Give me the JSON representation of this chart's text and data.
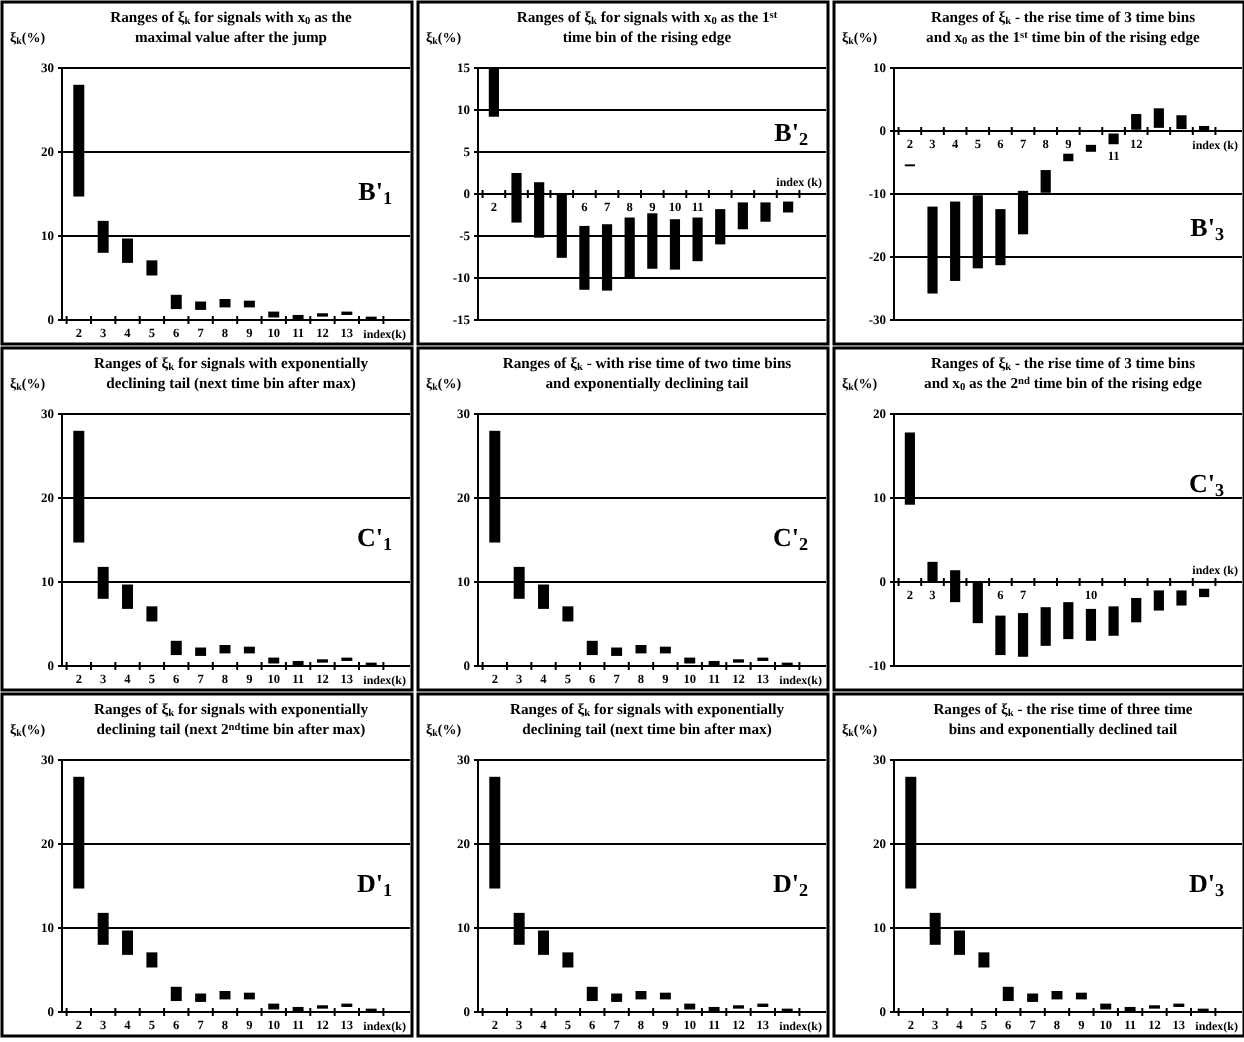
{
  "chart_data": [
    {
      "type": "bar",
      "title": "Ranges of ξ$_{k}$ for signals with x$_{0}$ as the maximal value after the jump",
      "ylabel": "ξ$_{k}$(%)",
      "xlabel": "index(k)",
      "categories": [
        "2",
        "3",
        "4",
        "5",
        "6",
        "7",
        "8",
        "9",
        "10",
        "11",
        "12",
        "13",
        null
      ],
      "base": [
        14.7,
        8,
        6.8,
        5.3,
        1.3,
        1.2,
        1.5,
        1.5,
        0.3,
        0.1,
        0.4,
        0.6,
        0.1
      ],
      "values": [
        13.3,
        3.8,
        2.9,
        1.8,
        1.7,
        1.0,
        1.0,
        0.8,
        0.7,
        0.5,
        0.4,
        0.4,
        0.3
      ],
      "color": "#000000",
      "ylim": [
        0,
        30
      ],
      "yticks": [
        0,
        10,
        20,
        30
      ],
      "grid": "y",
      "annotations": [
        "B'$_{1}$"
      ]
    },
    {
      "type": "bar",
      "title": "Ranges of ξ$_{k}$ for signals with x$_{0}$ as the 1$^{st}$ time bin of the rising edge",
      "ylabel": "ξ$_{k}$(%)",
      "xlabel": "index (k)",
      "categories": [
        "2",
        null,
        null,
        null,
        "6",
        "7",
        "8",
        "9",
        "10",
        "11",
        null,
        null,
        null,
        null
      ],
      "base": [
        9.2,
        -3.4,
        -5.2,
        -7.6,
        -11.4,
        -11.5,
        -10,
        -8.9,
        -9,
        -8,
        -6,
        -4.2,
        -3.3,
        -2.2
      ],
      "values": [
        5.8,
        5.9,
        6.6,
        7.6,
        7.6,
        7.9,
        7.2,
        6.6,
        6,
        5.2,
        4.2,
        3.2,
        2.3,
        1.3
      ],
      "color": "#000000",
      "ylim": [
        -15,
        15
      ],
      "yticks": [
        -15,
        -10,
        -5,
        0,
        5,
        10,
        15
      ],
      "grid": "y",
      "annotations": [
        "B'$_{2}$"
      ]
    },
    {
      "type": "bar",
      "title": "Ranges of ξ$_{k}$ - the rise time of 3 time bins and x$_{0}$ as the 1$^{st}$ time bin of the rising edge",
      "ylabel": "ξ$_{k}$(%)",
      "xlabel": "index (k)",
      "categories": [
        "2",
        "3",
        "4",
        "5",
        "6",
        "7",
        "8",
        "9",
        null,
        "11",
        "12",
        null,
        null,
        null
      ],
      "base": [
        -5.6,
        -25.8,
        -23.8,
        -21.8,
        -21.3,
        -16.4,
        -9.8,
        -4.8,
        -3.3,
        -2.1,
        0.2,
        0.5,
        0.3,
        0
      ],
      "values": [
        0.3,
        13.8,
        12.6,
        11.6,
        8.9,
        6.9,
        3.6,
        1.2,
        1.1,
        1.7,
        2.5,
        3.1,
        2.2,
        0.8
      ],
      "color": "#000000",
      "ylim": [
        -30,
        10
      ],
      "yticks": [
        -30,
        -20,
        -10,
        0,
        10
      ],
      "grid": "y",
      "annotations": [
        "B'$_{3}$"
      ]
    },
    {
      "type": "bar",
      "title": "Ranges of ξ$_{k}$ for signals with exponentially declining tail (next time bin after max)",
      "ylabel": "ξ$_{k}$(%)",
      "xlabel": "index(k)",
      "categories": [
        "2",
        "3",
        "4",
        "5",
        "6",
        "7",
        "8",
        "9",
        "10",
        "11",
        "12",
        "13",
        null
      ],
      "base": [
        14.7,
        8,
        6.8,
        5.3,
        1.3,
        1.2,
        1.5,
        1.5,
        0.3,
        0.1,
        0.4,
        0.6,
        0.1
      ],
      "values": [
        13.3,
        3.8,
        2.9,
        1.8,
        1.7,
        1.0,
        1.0,
        0.8,
        0.7,
        0.5,
        0.4,
        0.4,
        0.3
      ],
      "color": "#000000",
      "ylim": [
        0,
        30
      ],
      "yticks": [
        0,
        10,
        20,
        30
      ],
      "grid": "y",
      "annotations": [
        "C'$_{1}$"
      ]
    },
    {
      "type": "bar",
      "title": "Ranges of ξ$_{k}$ - with rise time of two time bins and exponentially declining tail",
      "ylabel": "ξ$_{k}$(%)",
      "xlabel": "index(k)",
      "categories": [
        "2",
        "3",
        "4",
        "5",
        "6",
        "7",
        "8",
        "9",
        "10",
        "11",
        "12",
        "13",
        null
      ],
      "base": [
        14.7,
        8,
        6.8,
        5.3,
        1.3,
        1.2,
        1.5,
        1.5,
        0.3,
        0.1,
        0.4,
        0.6,
        0.1
      ],
      "values": [
        13.3,
        3.8,
        2.9,
        1.8,
        1.7,
        1.0,
        1.0,
        0.8,
        0.7,
        0.5,
        0.4,
        0.4,
        0.3
      ],
      "color": "#000000",
      "ylim": [
        0,
        30
      ],
      "yticks": [
        0,
        10,
        20,
        30
      ],
      "grid": "y",
      "annotations": [
        "C'$_{2}$"
      ]
    },
    {
      "type": "bar",
      "title": "Ranges of ξ$_{k}$ - the rise time of 3 time bins and x$_{0}$ as the 2$^{nd}$ time bin of the rising edge",
      "ylabel": "ξ$_{k}$(%)",
      "xlabel": "index (k)",
      "categories": [
        "2",
        "3",
        null,
        null,
        "6",
        "7",
        null,
        null,
        "10",
        null,
        null,
        null,
        null,
        null
      ],
      "base": [
        9.2,
        0,
        -2.4,
        -4.9,
        -8.7,
        -8.9,
        -7.6,
        -6.8,
        -7,
        -6.4,
        -4.8,
        -3.4,
        -2.8,
        -1.8
      ],
      "values": [
        8.6,
        2.4,
        3.8,
        4.9,
        4.7,
        5.2,
        4.6,
        4.4,
        3.8,
        3.5,
        2.9,
        2.4,
        1.8,
        1.0
      ],
      "color": "#000000",
      "ylim": [
        -10,
        20
      ],
      "yticks": [
        -10,
        0,
        10,
        20
      ],
      "grid": "y",
      "annotations": [
        "C'$_{3}$"
      ]
    },
    {
      "type": "bar",
      "title": "Ranges of ξ$_{k}$ for signals with exponentially declining tail (next 2$^{nd}$time bin after max)",
      "ylabel": "ξ$_{k}$(%)",
      "xlabel": "index(k)",
      "categories": [
        "2",
        "3",
        "4",
        "5",
        "6",
        "7",
        "8",
        "9",
        "10",
        "11",
        "12",
        "13",
        null
      ],
      "base": [
        14.7,
        8,
        6.8,
        5.3,
        1.3,
        1.2,
        1.5,
        1.5,
        0.3,
        0.1,
        0.4,
        0.6,
        0.1
      ],
      "values": [
        13.3,
        3.8,
        2.9,
        1.8,
        1.7,
        1.0,
        1.0,
        0.8,
        0.7,
        0.5,
        0.4,
        0.4,
        0.3
      ],
      "color": "#000000",
      "ylim": [
        0,
        30
      ],
      "yticks": [
        0,
        10,
        20,
        30
      ],
      "grid": "y",
      "annotations": [
        "D'$_{1}$"
      ]
    },
    {
      "type": "bar",
      "title": "Ranges of ξ$_{k}$ for signals with exponentially declining tail (next time bin after max)",
      "ylabel": "ξ$_{k}$(%)",
      "xlabel": "index(k)",
      "categories": [
        "2",
        "3",
        "4",
        "5",
        "6",
        "7",
        "8",
        "9",
        "10",
        "11",
        "12",
        "13",
        null
      ],
      "base": [
        14.7,
        8,
        6.8,
        5.3,
        1.3,
        1.2,
        1.5,
        1.5,
        0.3,
        0.1,
        0.4,
        0.6,
        0.1
      ],
      "values": [
        13.3,
        3.8,
        2.9,
        1.8,
        1.7,
        1.0,
        1.0,
        0.8,
        0.7,
        0.5,
        0.4,
        0.4,
        0.3
      ],
      "color": "#000000",
      "ylim": [
        0,
        30
      ],
      "yticks": [
        0,
        10,
        20,
        30
      ],
      "grid": "y",
      "annotations": [
        "D'$_{2}$"
      ]
    },
    {
      "type": "bar",
      "title": "Ranges of ξ$_{k}$ - the rise time of three time bins and exponentially declined tail",
      "ylabel": "ξ$_{k}$(%)",
      "xlabel": "index(k)",
      "categories": [
        "2",
        "3",
        "4",
        "5",
        "6",
        "7",
        "8",
        "9",
        "10",
        "11",
        "12",
        "13",
        null
      ],
      "base": [
        14.7,
        8,
        6.8,
        5.3,
        1.3,
        1.2,
        1.5,
        1.5,
        0.3,
        0.1,
        0.4,
        0.6,
        0.1
      ],
      "values": [
        13.3,
        3.8,
        2.9,
        1.8,
        1.7,
        1.0,
        1.0,
        0.8,
        0.7,
        0.5,
        0.4,
        0.4,
        0.3
      ],
      "color": "#000000",
      "ylim": [
        0,
        30
      ],
      "yticks": [
        0,
        10,
        20,
        30
      ],
      "grid": "y",
      "annotations": [
        "D'$_{3}$"
      ]
    }
  ]
}
